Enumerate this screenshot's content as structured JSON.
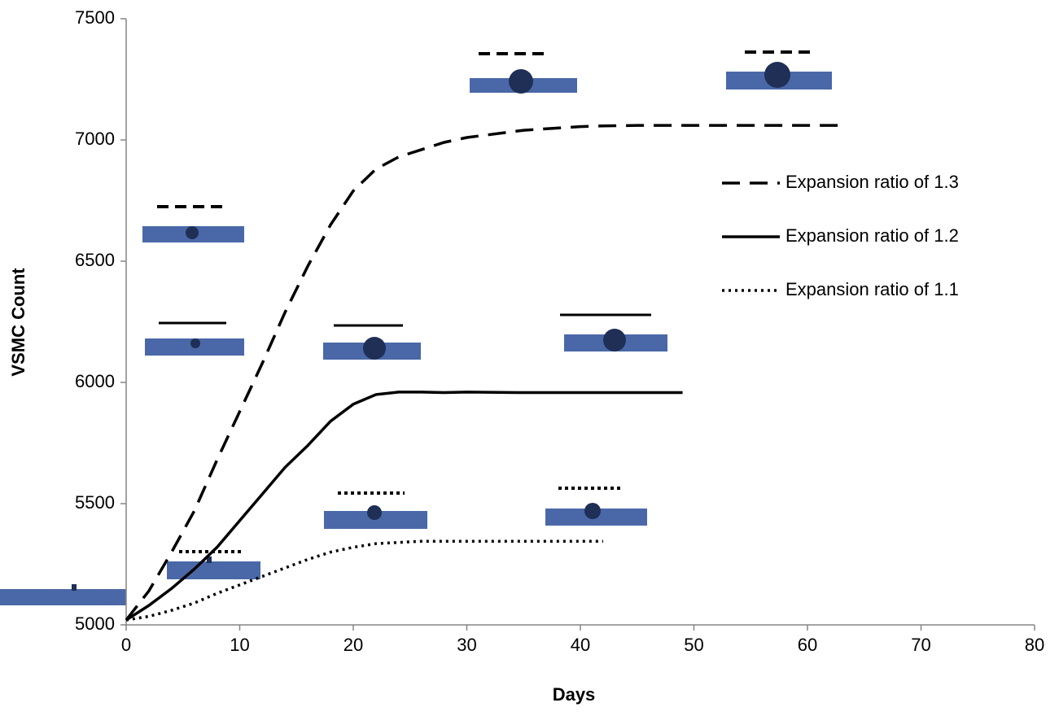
{
  "chart_data": {
    "type": "line",
    "x_label": "Days",
    "y_label": "VSMC Count",
    "x": [
      0,
      2,
      4,
      6,
      8,
      10,
      12,
      14,
      16,
      18,
      20,
      22,
      24,
      26,
      28,
      30,
      35,
      40,
      42,
      45,
      49,
      50,
      55,
      60,
      63
    ],
    "series": [
      {
        "name": "Expansion ratio of 1.3",
        "color": "#000000",
        "dash": "dashed",
        "values": [
          5020,
          5140,
          5300,
          5470,
          5680,
          5880,
          6080,
          6290,
          6480,
          6650,
          6790,
          6880,
          6930,
          6960,
          6990,
          7010,
          7040,
          7055,
          7058,
          7060,
          7060,
          7060,
          7060,
          7060,
          7060
        ]
      },
      {
        "name": "Expansion ratio of 1.2",
        "color": "#000000",
        "dash": "solid",
        "values": [
          5020,
          5080,
          5150,
          5230,
          5320,
          5430,
          5540,
          5650,
          5740,
          5840,
          5910,
          5950,
          5960,
          5960,
          5958,
          5960,
          5958,
          5958,
          5958,
          5958,
          5958,
          null,
          null,
          null,
          null
        ]
      },
      {
        "name": "Expansion ratio of 1.1",
        "color": "#000000",
        "dash": "dotted",
        "values": [
          5020,
          5035,
          5060,
          5090,
          5130,
          5165,
          5200,
          5235,
          5270,
          5300,
          5320,
          5335,
          5340,
          5345,
          5345,
          5345,
          5345,
          5345,
          5345,
          null,
          null,
          null,
          null,
          null,
          null
        ]
      }
    ],
    "xlim": [
      0,
      80
    ],
    "xticks": [
      0,
      10,
      20,
      30,
      40,
      50,
      60,
      70,
      80
    ],
    "ylim": [
      5000,
      7500
    ],
    "yticks": [
      5000,
      5500,
      6000,
      6500,
      7000,
      7500
    ],
    "grid": false,
    "legend": "right"
  }
}
